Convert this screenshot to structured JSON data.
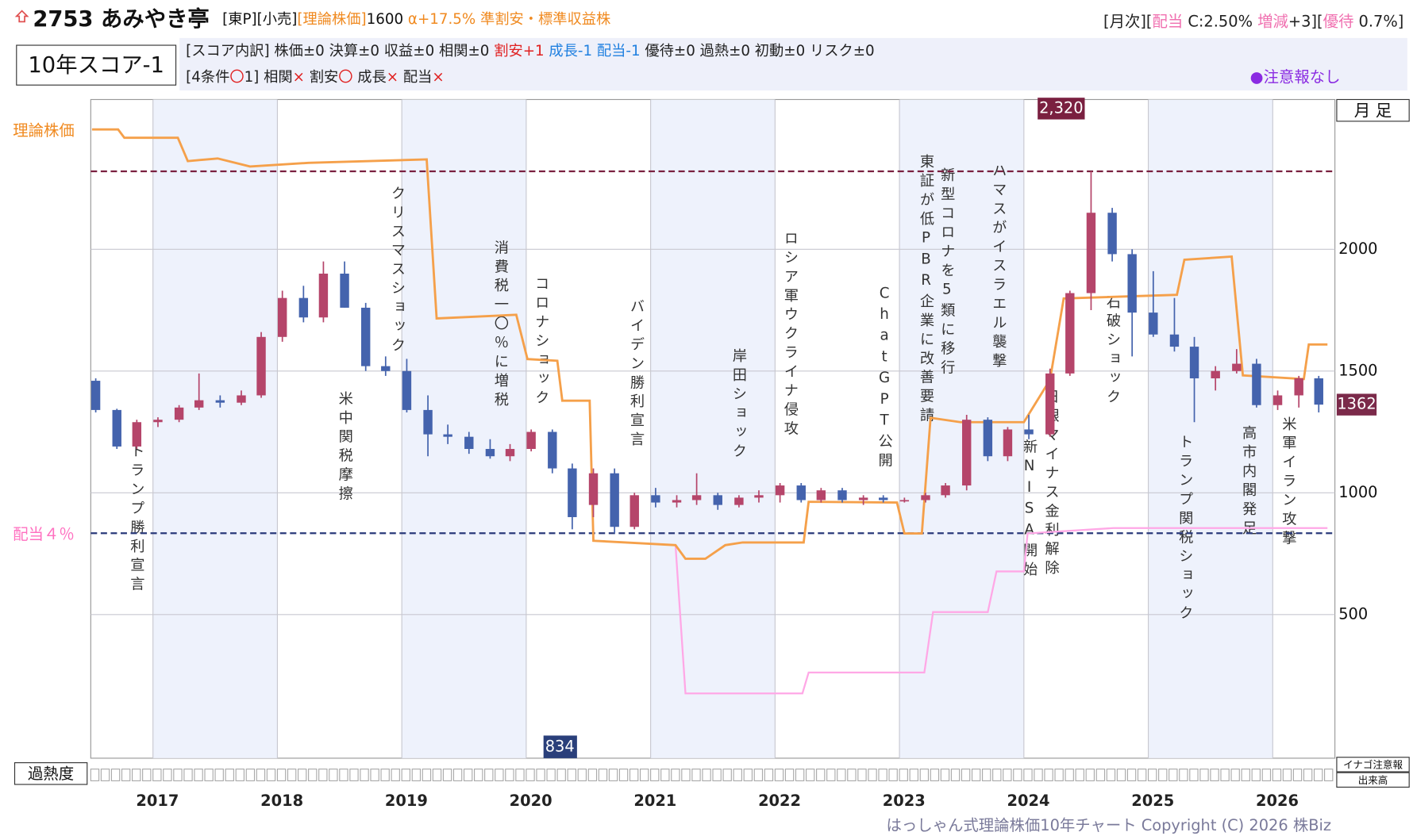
{
  "header": {
    "code_name": "2753 あみやき亭",
    "tags": "[東P][小売]",
    "theory_tag": "[理論株価]",
    "theory_price": "1600",
    "alpha": " α+17.5% ",
    "rating": "準割安・標準収益株",
    "right": [
      "[月次][",
      "配当",
      " C:2.50% ",
      "増減",
      "+3][",
      "優待",
      " 0.7%]"
    ],
    "score": "10年スコア-1",
    "breakdown": [
      "[スコア内訳] 株価±0 決算±0 収益±0 相関±0 ",
      "割安+1",
      " 成長-1 配当-1 ",
      "優待±0 過熱±0 初動±0 リスク±0"
    ],
    "conditions": [
      "[4条件",
      "〇",
      "1] 相関",
      "×",
      " 割安",
      "〇",
      " 成長",
      "×",
      " 配当",
      "×"
    ],
    "alert": "●注意報なし",
    "period": "月 足",
    "heat": "過熱度",
    "inago": "イナゴ注意報",
    "volume": "出来高",
    "footer": "はっしゃん式理論株価10年チャート Copyright (C) 2026 株Biz"
  },
  "chart_data": {
    "type": "candlestick",
    "xlim": [
      2016.5,
      2026.5
    ],
    "xticks": [
      2017,
      2018,
      2019,
      2020,
      2021,
      2022,
      2023,
      2024,
      2025,
      2026
    ],
    "ylim": [
      -90,
      2615
    ],
    "yticks": [
      500,
      1000,
      1500,
      2000
    ],
    "grid": true,
    "up_color": "#b5456a",
    "down_color": "#4463ad",
    "candles": {
      "x": [
        2016.54,
        2016.71,
        2016.87,
        2017.04,
        2017.21,
        2017.37,
        2017.54,
        2017.71,
        2017.87,
        2018.04,
        2018.21,
        2018.37,
        2018.54,
        2018.71,
        2018.87,
        2019.04,
        2019.21,
        2019.37,
        2019.54,
        2019.71,
        2019.87,
        2020.04,
        2020.21,
        2020.37,
        2020.54,
        2020.71,
        2020.87,
        2021.04,
        2021.21,
        2021.37,
        2021.54,
        2021.71,
        2021.87,
        2022.04,
        2022.21,
        2022.37,
        2022.54,
        2022.71,
        2022.87,
        2023.04,
        2023.21,
        2023.37,
        2023.54,
        2023.71,
        2023.87,
        2024.04,
        2024.21,
        2024.37,
        2024.54,
        2024.71,
        2024.87,
        2025.04,
        2025.21,
        2025.37,
        2025.54,
        2025.71,
        2025.87,
        2026.04,
        2026.21,
        2026.37
      ],
      "open": [
        1460,
        1340,
        1190,
        1290,
        1300,
        1350,
        1380,
        1370,
        1400,
        1640,
        1800,
        1720,
        1900,
        1760,
        1520,
        1500,
        1340,
        1240,
        1230,
        1180,
        1150,
        1180,
        1250,
        1100,
        950,
        1080,
        860,
        990,
        960,
        970,
        990,
        950,
        980,
        990,
        1030,
        970,
        1010,
        970,
        980,
        970,
        970,
        990,
        1030,
        1300,
        1150,
        1260,
        1240,
        1490,
        1820,
        2150,
        1980,
        1740,
        1650,
        1600,
        1470,
        1500,
        1530,
        1360,
        1400,
        1470
      ],
      "high": [
        1470,
        1345,
        1300,
        1310,
        1360,
        1490,
        1400,
        1420,
        1660,
        1830,
        1850,
        1950,
        1950,
        1780,
        1560,
        1550,
        1400,
        1280,
        1250,
        1220,
        1200,
        1260,
        1260,
        1120,
        1100,
        1100,
        1000,
        1020,
        990,
        1080,
        1000,
        990,
        1010,
        1040,
        1040,
        1020,
        1020,
        990,
        990,
        980,
        1000,
        1040,
        1320,
        1310,
        1270,
        1320,
        1510,
        1830,
        2320,
        2170,
        2000,
        1910,
        1800,
        1640,
        1520,
        1590,
        1550,
        1420,
        1480,
        1480
      ],
      "low": [
        1330,
        1180,
        1180,
        1270,
        1290,
        1340,
        1350,
        1360,
        1390,
        1620,
        1700,
        1700,
        1760,
        1500,
        1480,
        1330,
        1150,
        1200,
        1160,
        1140,
        1130,
        1170,
        1080,
        850,
        900,
        834,
        850,
        940,
        940,
        950,
        930,
        940,
        960,
        960,
        960,
        960,
        960,
        950,
        960,
        960,
        960,
        980,
        1010,
        1130,
        1130,
        1220,
        1230,
        1480,
        1750,
        1950,
        1560,
        1640,
        1580,
        1290,
        1420,
        1490,
        1350,
        1340,
        1350,
        1330
      ],
      "close": [
        1340,
        1190,
        1290,
        1300,
        1350,
        1380,
        1370,
        1400,
        1640,
        1800,
        1720,
        1900,
        1760,
        1520,
        1500,
        1340,
        1240,
        1230,
        1180,
        1150,
        1180,
        1250,
        1100,
        900,
        1080,
        860,
        990,
        960,
        970,
        990,
        950,
        980,
        990,
        1030,
        970,
        1010,
        970,
        980,
        970,
        970,
        990,
        1030,
        1300,
        1150,
        1260,
        1240,
        1490,
        1820,
        2150,
        1980,
        1740,
        1650,
        1600,
        1470,
        1500,
        1530,
        1360,
        1400,
        1470,
        1362
      ]
    },
    "theory_line": {
      "name": "理論株価",
      "color": "#f5a04a",
      "x": [
        2016.51,
        2016.72,
        2016.77,
        2017.2,
        2017.28,
        2017.52,
        2017.78,
        2018.25,
        2019.2,
        2019.28,
        2019.92,
        2020.01,
        2020.25,
        2020.29,
        2020.51,
        2020.54,
        2020.8,
        2021.2,
        2021.28,
        2021.44,
        2021.6,
        2021.74,
        2022.23,
        2022.27,
        2022.98,
        2023.04,
        2023.18,
        2023.25,
        2023.49,
        2024.0,
        2024.21,
        2024.32,
        2025.23,
        2025.29,
        2025.67,
        2025.76,
        2026.25,
        2026.29,
        2026.44
      ],
      "values": [
        2492,
        2492,
        2458,
        2458,
        2362,
        2373,
        2340,
        2355,
        2369,
        1716,
        1731,
        1549,
        1542,
        1378,
        1378,
        803,
        796,
        785,
        729,
        729,
        785,
        796,
        796,
        963,
        960,
        833,
        833,
        1308,
        1290,
        1290,
        1464,
        1798,
        1813,
        1957,
        1970,
        1482,
        1467,
        1609,
        1609
      ]
    },
    "dividend_line": {
      "color": "#ffa8e6",
      "x": [
        2021.2,
        2021.28,
        2022.22,
        2022.27,
        2023.2,
        2023.27,
        2023.71,
        2023.78,
        2024.0,
        2024.03,
        2024.72,
        2026.44
      ],
      "values": [
        785,
        176,
        176,
        262,
        262,
        510,
        510,
        677,
        677,
        833,
        855,
        855
      ]
    },
    "max": {
      "value": 2320,
      "label": "2,320"
    },
    "min": 834,
    "last": 1362,
    "dividend_level": {
      "value": 834,
      "label": "配当４％"
    },
    "annotations": [
      "トランプ勝利宣言",
      "米中関税摩擦",
      "クリスマスショック",
      "消費税一〇％に増税",
      "コロナショック",
      "バイデン勝利宣言",
      "岸田ショック",
      "ロシア軍ウクライナ侵攻",
      "ChatGPT公開",
      "東証が低PBR企業に改善要請",
      "新型コロナを5類に移行",
      "ハマスがイスラエル襲撃",
      "新NISA開始",
      "日銀マイナス金利解除",
      "石破ショック",
      "トランプ関税ショック",
      "高市内閣発足",
      "米軍イラン攻撃"
    ]
  }
}
